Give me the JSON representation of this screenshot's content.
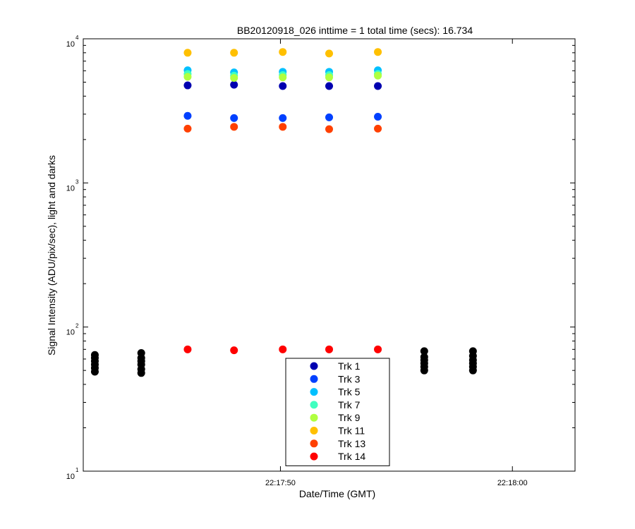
{
  "chart_data": {
    "type": "scatter",
    "title": "BB20120918_026 inttime = 1 total time (secs): 16.734",
    "xlabel": "Date/Time (GMT)",
    "ylabel": "Signal Intensity (ADU/pix/sec), light and darks",
    "yscale": "log",
    "ylim": [
      10,
      10000
    ],
    "xlim": [
      "22:17:41.5",
      "22:18:02.7"
    ],
    "x_ticks": [
      {
        "t": "22:17:50",
        "label": "22:17:50"
      },
      {
        "t": "22:18:00",
        "label": "22:18:00"
      }
    ],
    "y_ticks": [
      {
        "value": 10,
        "base": "10",
        "exp": "1"
      },
      {
        "value": 100,
        "base": "10",
        "exp": "2"
      },
      {
        "value": 1000,
        "base": "10",
        "exp": "3"
      },
      {
        "value": 10000,
        "base": "10",
        "exp": "4"
      }
    ],
    "grid": false,
    "legend_position": "bottom-center",
    "series": [
      {
        "name": "Trk 1",
        "color": "#0000b0",
        "x": [
          "22:17:46.0",
          "22:17:48.0",
          "22:17:50.1",
          "22:17:52.1",
          "22:17:54.2"
        ],
        "y": [
          4750,
          4800,
          4700,
          4700,
          4700
        ]
      },
      {
        "name": "Trk 3",
        "color": "#0040ff",
        "x": [
          "22:17:46.0",
          "22:17:48.0",
          "22:17:50.1",
          "22:17:52.1",
          "22:17:54.2"
        ],
        "y": [
          2920,
          2820,
          2820,
          2850,
          2880
        ]
      },
      {
        "name": "Trk 5",
        "color": "#00c0ff",
        "x": [
          "22:17:46.0",
          "22:17:48.0",
          "22:17:50.1",
          "22:17:52.1",
          "22:17:54.2"
        ],
        "y": [
          6050,
          5850,
          5900,
          5900,
          6050
        ]
      },
      {
        "name": "Trk 7",
        "color": "#40ffc0",
        "x": [
          "22:17:46.0",
          "22:17:48.0",
          "22:17:50.1",
          "22:17:52.1",
          "22:17:54.2"
        ],
        "y": [
          5700,
          5550,
          5600,
          5600,
          5700
        ]
      },
      {
        "name": "Trk 9",
        "color": "#b0ff40",
        "x": [
          "22:17:46.0",
          "22:17:48.0",
          "22:17:50.1",
          "22:17:52.1",
          "22:17:54.2"
        ],
        "y": [
          5450,
          5350,
          5400,
          5400,
          5550
        ]
      },
      {
        "name": "Trk 11",
        "color": "#ffc000",
        "x": [
          "22:17:46.0",
          "22:17:48.0",
          "22:17:50.1",
          "22:17:52.1",
          "22:17:54.2"
        ],
        "y": [
          8000,
          8000,
          8100,
          7900,
          8100
        ]
      },
      {
        "name": "Trk 13",
        "color": "#ff4000",
        "x": [
          "22:17:46.0",
          "22:17:48.0",
          "22:17:50.1",
          "22:17:52.1",
          "22:17:54.2"
        ],
        "y": [
          2380,
          2450,
          2450,
          2360,
          2380
        ]
      },
      {
        "name": "Trk 14",
        "color": "#ff0000",
        "x": [
          "22:17:46.0",
          "22:17:48.0",
          "22:17:50.1",
          "22:17:52.1",
          "22:17:54.2"
        ],
        "y": [
          70,
          69,
          70,
          70,
          70
        ]
      }
    ],
    "darks": {
      "color": "#000000",
      "x": [
        "22:17:42.0",
        "22:17:44.0",
        "22:17:56.2",
        "22:17:58.3"
      ],
      "y": [
        [
          49,
          52,
          55,
          58,
          61,
          64
        ],
        [
          48,
          51,
          55,
          58,
          61,
          66
        ],
        [
          50,
          53,
          56,
          59,
          62,
          68
        ],
        [
          50,
          53,
          56,
          59,
          63,
          68
        ]
      ]
    }
  }
}
